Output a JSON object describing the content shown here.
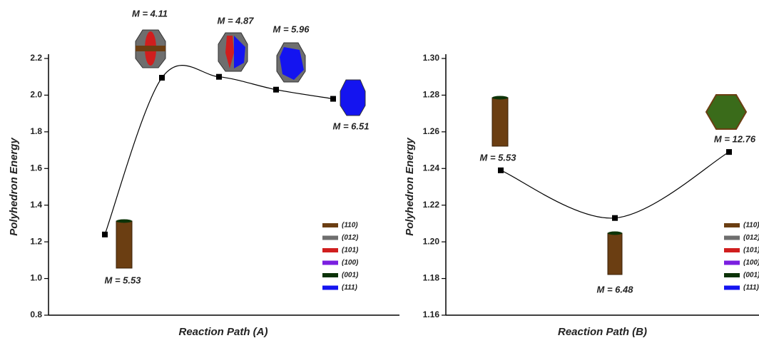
{
  "chart_data": [
    {
      "type": "line",
      "categories": [
        null,
        null,
        null,
        null,
        null
      ],
      "values": [
        1.24,
        2.095,
        2.1,
        2.03,
        1.98
      ],
      "color": "#000000",
      "ylim": [
        0.8,
        2.2
      ],
      "yticks": [
        0.8,
        {
          "value": 1,
          "label": "1.0"
        },
        1.2,
        1.4,
        1.6,
        1.8,
        {
          "value": 2,
          "label": "2.0"
        },
        2.2
      ],
      "y_label": "Polyhedron Energy",
      "x_label": "Reaction Path (A)",
      "annotations": [
        "M = 5.53",
        "M = 4.11",
        "M = 4.87",
        "M = 5.96",
        "M = 6.51"
      ],
      "facets": [
        {
          "name": "(110)",
          "color": "#6b3e12"
        },
        {
          "name": "(012)",
          "color": "#6e6e6e"
        },
        {
          "name": "(101)",
          "color": "#d01e1e"
        },
        {
          "name": "(100)",
          "color": "#7a1fe0"
        },
        {
          "name": "(001)",
          "color": "#0c3308"
        },
        {
          "name": "(111)",
          "color": "#1414f0"
        }
      ]
    },
    {
      "type": "line",
      "categories": [
        null,
        null,
        null
      ],
      "values": [
        1.239,
        1.213,
        1.249
      ],
      "color": "#000000",
      "ylim": [
        1.16,
        1.3
      ],
      "yticks": [
        1.16,
        1.18,
        {
          "value": 1.2,
          "label": "1.20"
        },
        1.22,
        1.24,
        1.26,
        1.28,
        {
          "value": 1.3,
          "label": "1.30"
        }
      ],
      "y_label": "Polyhedron Energy",
      "x_label": "Reaction Path (B)",
      "annotations": [
        "M = 5.53",
        "M = 6.48",
        "M = 12.76"
      ],
      "facets": [
        {
          "name": "(110)",
          "color": "#6b3e12"
        },
        {
          "name": "(012)",
          "color": "#6e6e6e"
        },
        {
          "name": "(101)",
          "color": "#d01e1e"
        },
        {
          "name": "(100)",
          "color": "#7a1fe0"
        },
        {
          "name": "(001)",
          "color": "#0c3308"
        },
        {
          "name": "(111)",
          "color": "#1414f0"
        }
      ]
    }
  ]
}
